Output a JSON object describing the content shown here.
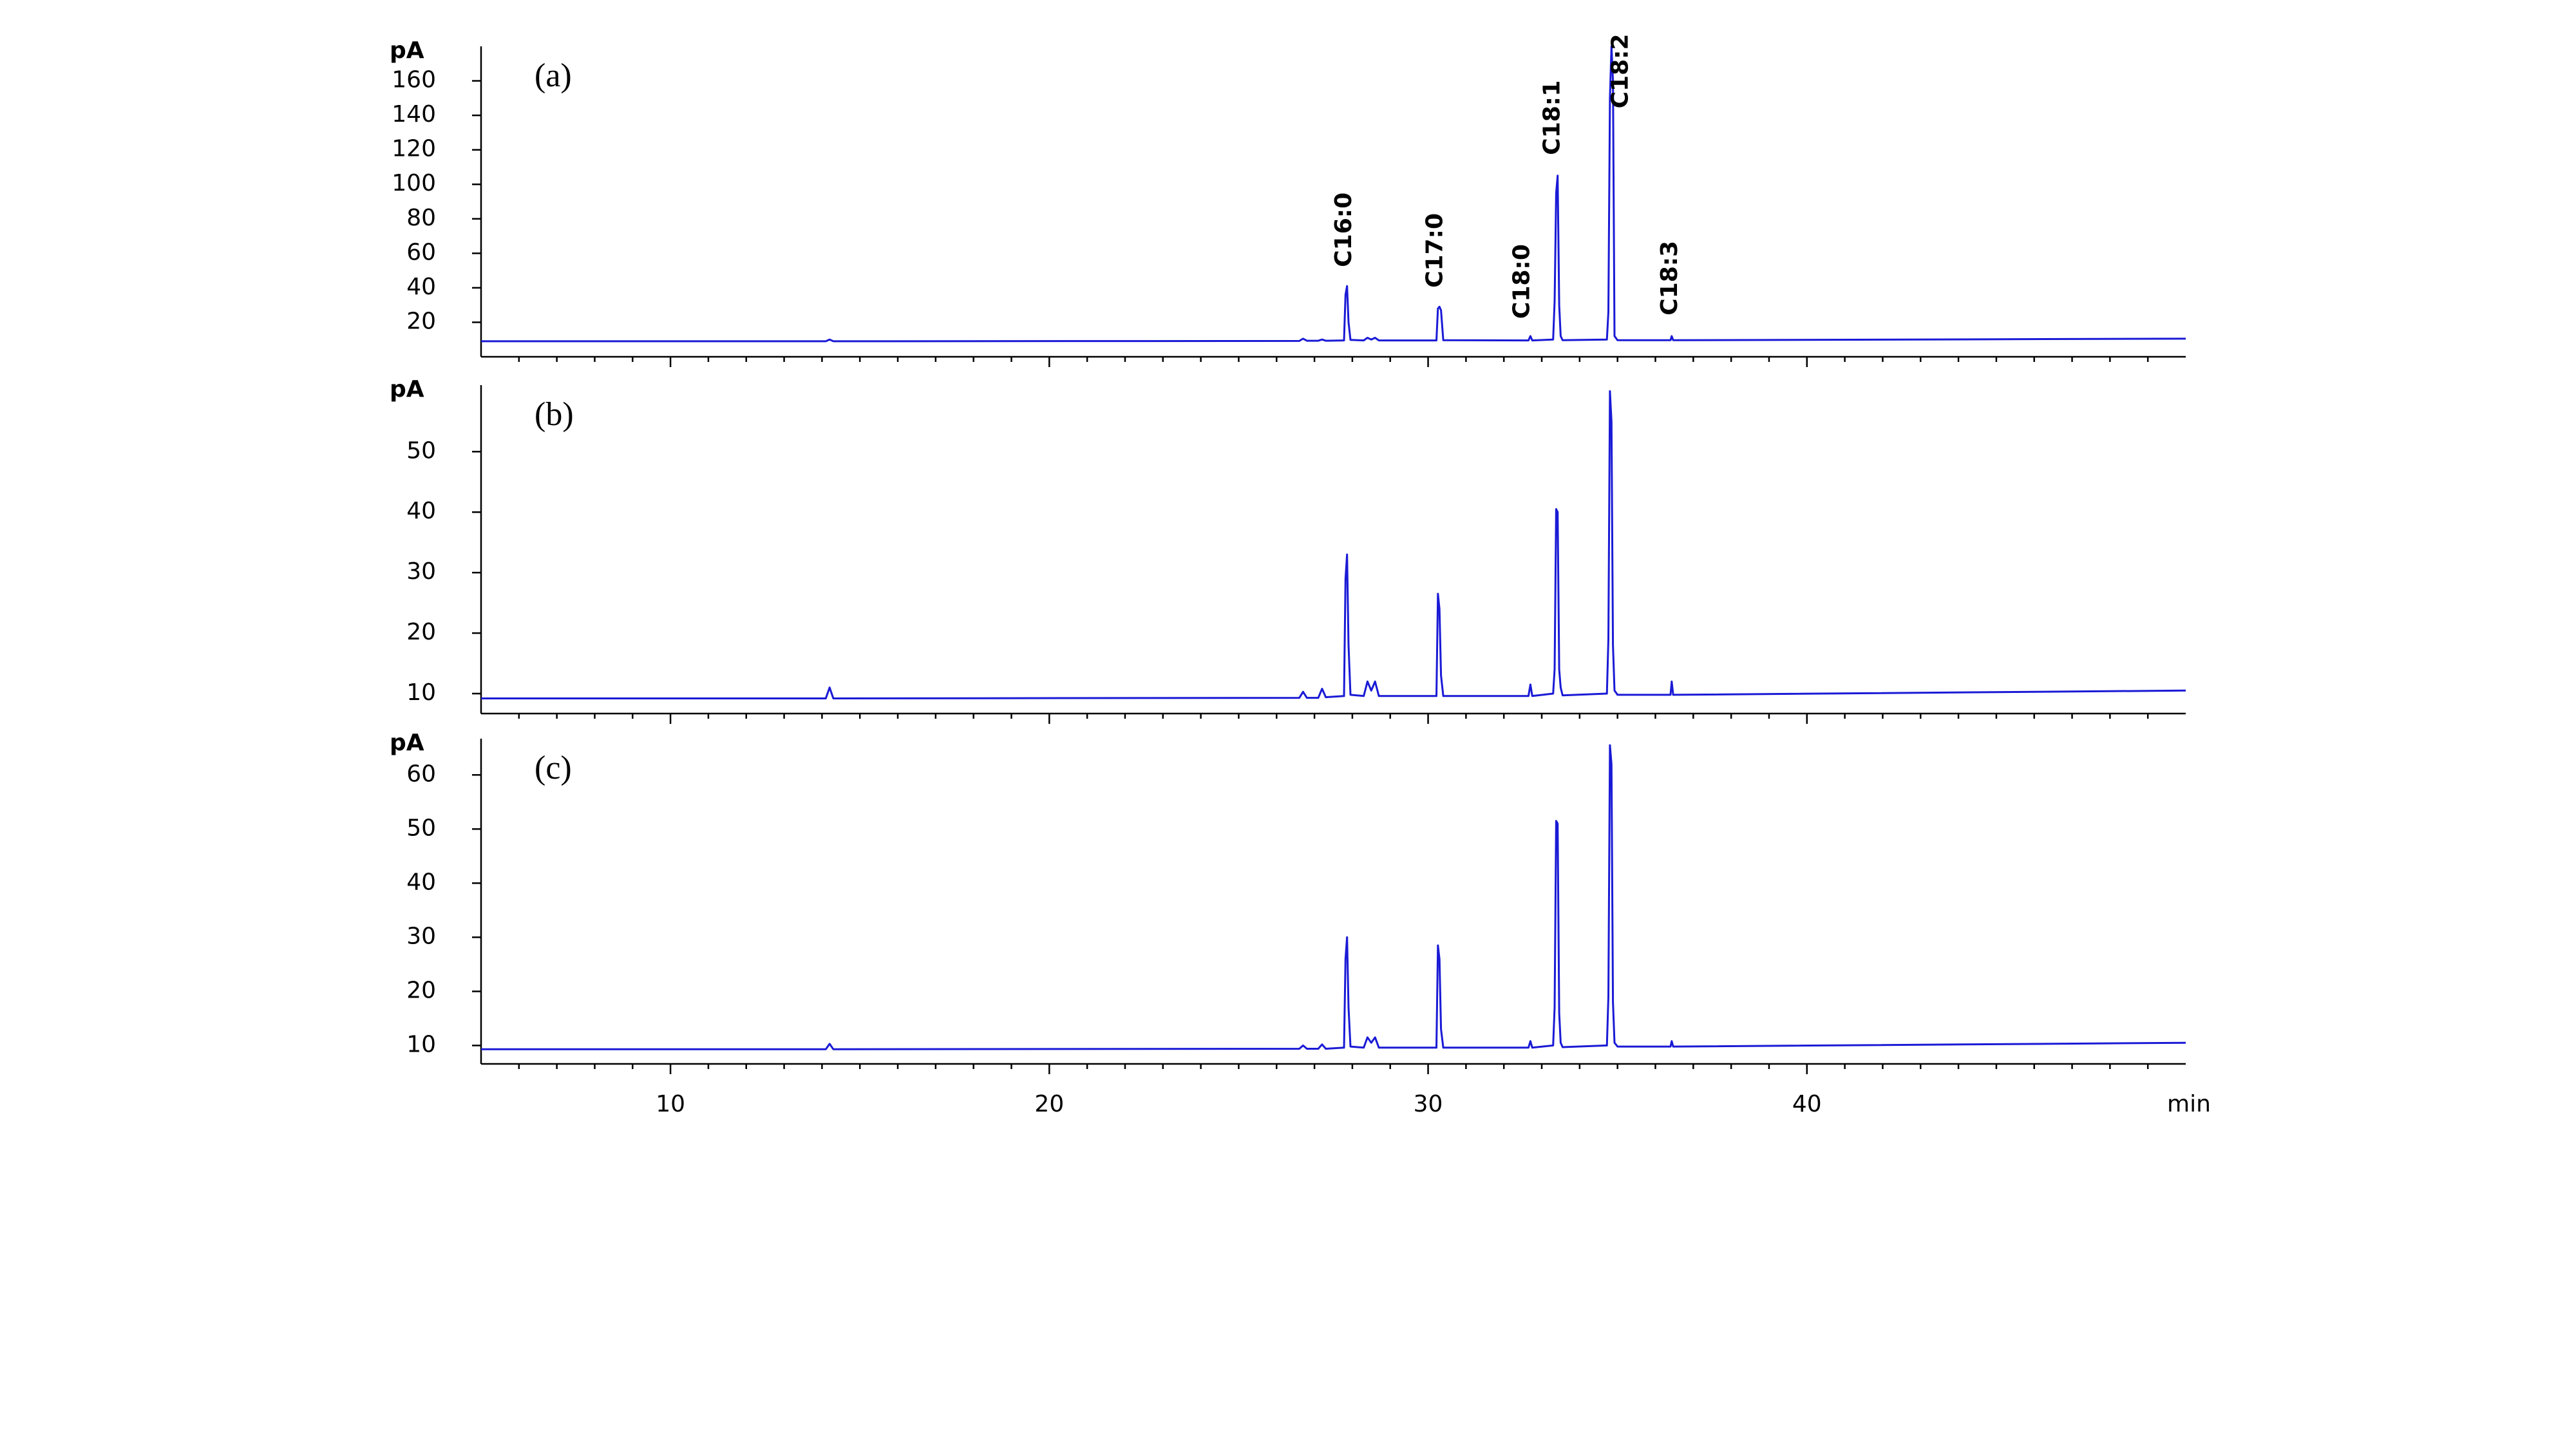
{
  "chart_data": [
    {
      "type": "line",
      "ylabel": "pA",
      "panel_label": "(a)",
      "color": "#1a1ad6",
      "xlim": [
        5,
        50
      ],
      "xticks": [
        10,
        20,
        30,
        40
      ],
      "xticks_minor": [
        6,
        7,
        8,
        9,
        11,
        12,
        13,
        14,
        15,
        16,
        17,
        18,
        19,
        21,
        22,
        23,
        24,
        25,
        26,
        27,
        28,
        29,
        31,
        32,
        33,
        34,
        35,
        36,
        37,
        38,
        39,
        41,
        42,
        43,
        44,
        45,
        46,
        47,
        48,
        49
      ],
      "ylim": [
        0,
        180
      ],
      "yticks": [
        20,
        40,
        60,
        80,
        100,
        120,
        140,
        160
      ],
      "x": [
        5,
        14.1,
        14.2,
        14.3,
        26.6,
        26.7,
        26.8,
        27.1,
        27.2,
        27.3,
        27.78,
        27.82,
        27.86,
        27.9,
        27.95,
        28.3,
        28.4,
        28.5,
        28.6,
        28.7,
        30.22,
        30.26,
        30.3,
        30.34,
        30.4,
        32.65,
        32.7,
        32.75,
        33.3,
        33.34,
        33.38,
        33.42,
        33.46,
        33.5,
        33.55,
        34.72,
        34.76,
        34.8,
        34.84,
        34.88,
        34.92,
        35,
        36.4,
        36.43,
        36.47,
        50
      ],
      "values": [
        9,
        9,
        10,
        9,
        9.2,
        10.5,
        9.3,
        9.3,
        10,
        9.3,
        9.5,
        36,
        41,
        20,
        9.8,
        9.5,
        11,
        10,
        11,
        9.5,
        9.5,
        28,
        29,
        27,
        9.6,
        9.5,
        12,
        9.5,
        10,
        32,
        95,
        105,
        30,
        12,
        9.6,
        10,
        26,
        150,
        180,
        160,
        12,
        9.6,
        9.6,
        12,
        9.6,
        10.5
      ],
      "annotations": [
        {
          "text": "C16:0",
          "x": 27.8,
          "y": 52
        },
        {
          "text": "C17:0",
          "x": 30.2,
          "y": 40
        },
        {
          "text": "C18:0",
          "x": 32.5,
          "y": 22
        },
        {
          "text": "C18:1",
          "x": 33.3,
          "y": 117
        },
        {
          "text": "C18:2",
          "x": 35.1,
          "y": 144
        },
        {
          "text": "C18:3",
          "x": 36.4,
          "y": 24
        }
      ]
    },
    {
      "type": "line",
      "ylabel": "pA",
      "panel_label": "(b)",
      "color": "#1a1ad6",
      "xlim": [
        5,
        50
      ],
      "xticks": [
        10,
        20,
        30,
        40
      ],
      "xticks_minor": [
        6,
        7,
        8,
        9,
        11,
        12,
        13,
        14,
        15,
        16,
        17,
        18,
        19,
        21,
        22,
        23,
        24,
        25,
        26,
        27,
        28,
        29,
        31,
        32,
        33,
        34,
        35,
        36,
        37,
        38,
        39,
        41,
        42,
        43,
        44,
        45,
        46,
        47,
        48,
        49
      ],
      "ylim": [
        6.7,
        61
      ],
      "yticks": [
        10,
        20,
        30,
        40,
        50
      ],
      "x": [
        5,
        14.1,
        14.2,
        14.3,
        26.6,
        26.7,
        26.8,
        27.1,
        27.2,
        27.3,
        27.78,
        27.82,
        27.86,
        27.9,
        27.95,
        28.3,
        28.4,
        28.5,
        28.6,
        28.7,
        30.22,
        30.26,
        30.3,
        30.34,
        30.4,
        32.65,
        32.7,
        32.75,
        33.3,
        33.34,
        33.38,
        33.42,
        33.46,
        33.5,
        33.55,
        34.72,
        34.76,
        34.8,
        34.84,
        34.88,
        34.92,
        35,
        36.4,
        36.43,
        36.47,
        50
      ],
      "values": [
        9.2,
        9.2,
        11,
        9.2,
        9.3,
        10.3,
        9.3,
        9.3,
        10.8,
        9.4,
        9.6,
        29,
        33,
        18,
        9.8,
        9.6,
        12,
        10.5,
        12,
        9.6,
        9.6,
        26.5,
        24,
        13,
        9.6,
        9.6,
        11.5,
        9.6,
        10,
        14,
        40.5,
        40,
        14,
        11,
        9.7,
        10,
        19,
        60,
        55,
        18,
        10.5,
        9.8,
        9.8,
        12,
        9.8,
        10.5
      ]
    },
    {
      "type": "line",
      "ylabel": "pA",
      "panel_label": "(c)",
      "color": "#1a1ad6",
      "xlabel": "min",
      "xtick_labels": true,
      "xlim": [
        5,
        50
      ],
      "xticks": [
        10,
        20,
        30,
        40
      ],
      "xticks_minor": [
        6,
        7,
        8,
        9,
        11,
        12,
        13,
        14,
        15,
        16,
        17,
        18,
        19,
        21,
        22,
        23,
        24,
        25,
        26,
        27,
        28,
        29,
        31,
        32,
        33,
        34,
        35,
        36,
        37,
        38,
        39,
        41,
        42,
        43,
        44,
        45,
        46,
        47,
        48,
        49
      ],
      "ylim": [
        6.6,
        66.7
      ],
      "yticks": [
        10,
        20,
        30,
        40,
        50,
        60
      ],
      "x": [
        5,
        14.1,
        14.2,
        14.3,
        26.6,
        26.7,
        26.8,
        27.1,
        27.2,
        27.3,
        27.78,
        27.82,
        27.86,
        27.9,
        27.95,
        28.3,
        28.4,
        28.5,
        28.6,
        28.7,
        30.22,
        30.26,
        30.3,
        30.34,
        30.4,
        32.65,
        32.7,
        32.75,
        33.3,
        33.34,
        33.38,
        33.42,
        33.46,
        33.5,
        33.55,
        34.72,
        34.76,
        34.8,
        34.84,
        34.88,
        34.92,
        35,
        36.4,
        36.43,
        36.47,
        50
      ],
      "values": [
        9.3,
        9.3,
        10.3,
        9.3,
        9.4,
        10,
        9.4,
        9.4,
        10.2,
        9.4,
        9.6,
        26,
        30,
        17,
        9.8,
        9.6,
        11.5,
        10.5,
        11.5,
        9.6,
        9.6,
        28.5,
        26,
        13,
        9.6,
        9.6,
        10.8,
        9.6,
        10,
        17,
        51.5,
        51,
        16,
        10.5,
        9.7,
        10,
        19,
        65.5,
        62,
        18,
        10.5,
        9.8,
        9.8,
        10.8,
        9.8,
        10.5
      ]
    }
  ]
}
